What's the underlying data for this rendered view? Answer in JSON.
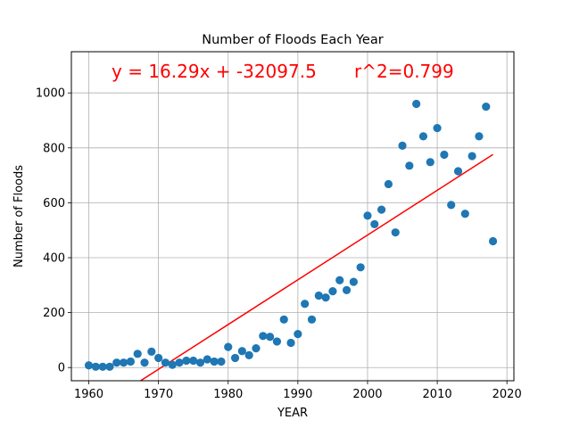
{
  "chart_data": {
    "type": "scatter",
    "title": "Number of Floods Each Year",
    "xlabel": "YEAR",
    "ylabel": "Number of Floods",
    "xlim": [
      1957.5,
      2021
    ],
    "ylim": [
      -48,
      1150
    ],
    "xticks": [
      1960,
      1970,
      1980,
      1990,
      2000,
      2010,
      2020
    ],
    "yticks": [
      0,
      200,
      400,
      600,
      800,
      1000
    ],
    "grid": true,
    "point_color": "#1f77b4",
    "line_color": "#ff0000",
    "annotations": [
      {
        "text": "y = 16.29x + -32097.5",
        "color": "#ff0000"
      },
      {
        "text": "r^2=0.799",
        "color": "#ff0000"
      }
    ],
    "points": [
      [
        1960,
        8
      ],
      [
        1961,
        3
      ],
      [
        1962,
        3
      ],
      [
        1963,
        3
      ],
      [
        1964,
        18
      ],
      [
        1965,
        18
      ],
      [
        1966,
        22
      ],
      [
        1967,
        50
      ],
      [
        1968,
        18
      ],
      [
        1969,
        58
      ],
      [
        1970,
        35
      ],
      [
        1971,
        18
      ],
      [
        1972,
        10
      ],
      [
        1973,
        18
      ],
      [
        1974,
        25
      ],
      [
        1975,
        25
      ],
      [
        1976,
        18
      ],
      [
        1977,
        30
      ],
      [
        1978,
        22
      ],
      [
        1979,
        22
      ],
      [
        1980,
        75
      ],
      [
        1981,
        35
      ],
      [
        1982,
        60
      ],
      [
        1983,
        45
      ],
      [
        1984,
        70
      ],
      [
        1985,
        115
      ],
      [
        1986,
        112
      ],
      [
        1987,
        95
      ],
      [
        1988,
        175
      ],
      [
        1989,
        90
      ],
      [
        1990,
        122
      ],
      [
        1991,
        232
      ],
      [
        1992,
        175
      ],
      [
        1993,
        262
      ],
      [
        1994,
        255
      ],
      [
        1995,
        278
      ],
      [
        1996,
        318
      ],
      [
        1997,
        282
      ],
      [
        1998,
        312
      ],
      [
        1999,
        365
      ],
      [
        2000,
        553
      ],
      [
        2001,
        522
      ],
      [
        2002,
        575
      ],
      [
        2003,
        668
      ],
      [
        2004,
        492
      ],
      [
        2005,
        808
      ],
      [
        2006,
        735
      ],
      [
        2007,
        960
      ],
      [
        2008,
        842
      ],
      [
        2009,
        748
      ],
      [
        2010,
        872
      ],
      [
        2011,
        775
      ],
      [
        2012,
        592
      ],
      [
        2013,
        715
      ],
      [
        2014,
        560
      ],
      [
        2015,
        770
      ],
      [
        2016,
        842
      ],
      [
        2017,
        950
      ],
      [
        2018,
        460
      ]
    ],
    "regression": {
      "slope": 16.29,
      "intercept": -32097.5,
      "x_range": [
        1960,
        2018
      ]
    }
  }
}
